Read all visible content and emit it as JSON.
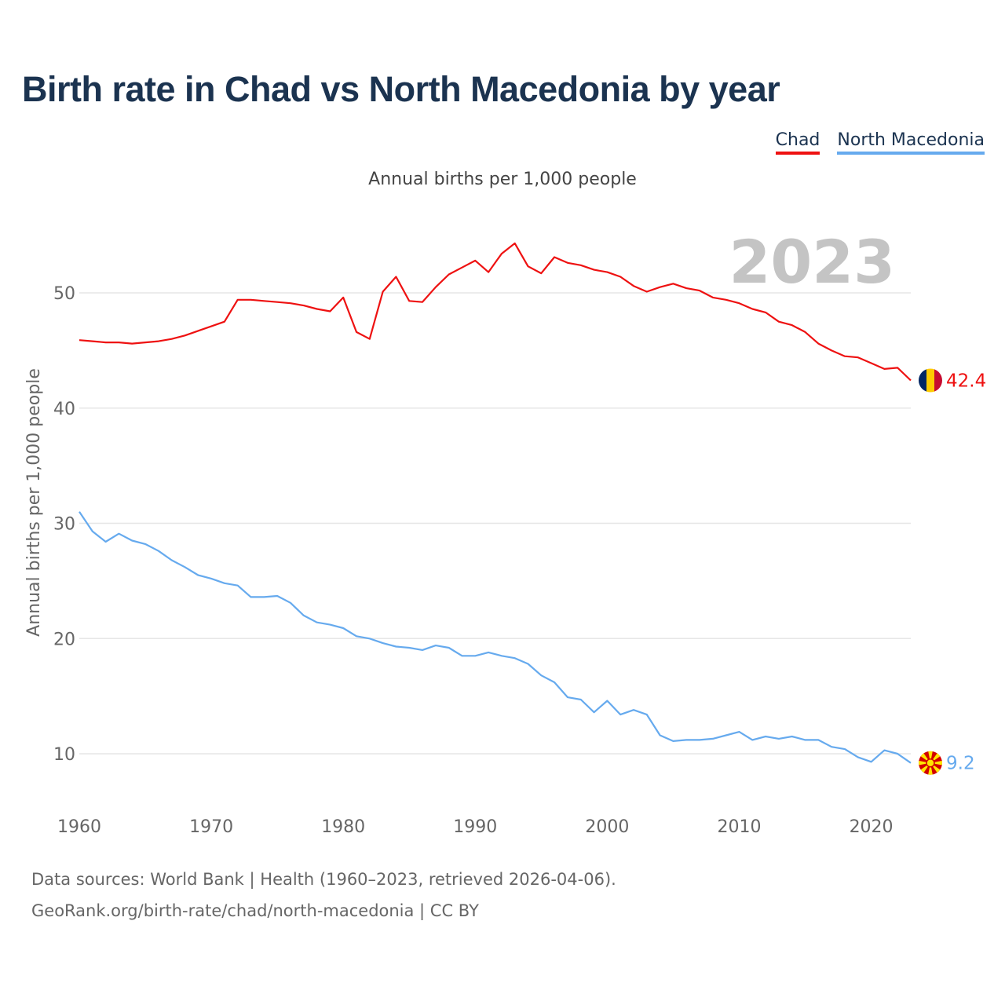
{
  "title": "Birth rate in Chad vs North Macedonia by year",
  "subtitle": "Annual births per 1,000 people",
  "footer": {
    "line1": "Data sources: World Bank | Health (1960–2023, retrieved 2026-04-06).",
    "line2": "GeoRank.org/birth-rate/chad/north-macedonia | CC BY"
  },
  "colors": {
    "chad": "#ee1111",
    "north_macedonia": "#66aaee",
    "grid": "#e6e6e6",
    "axis_text": "#666666",
    "year_watermark": "#c4c4c4"
  },
  "chart_data": {
    "type": "line",
    "title": "Birth rate in Chad vs North Macedonia by year",
    "ylabel": "Annual births per 1,000 people",
    "xlabel": "",
    "year_watermark": "2023",
    "xlim": [
      1960,
      2023
    ],
    "ylim": [
      5,
      57
    ],
    "x_ticks": [
      1960,
      1970,
      1980,
      1990,
      2000,
      2010,
      2020
    ],
    "y_ticks": [
      10,
      20,
      30,
      40,
      50
    ],
    "grid": true,
    "legend": "top-right",
    "x": [
      1960,
      1961,
      1962,
      1963,
      1964,
      1965,
      1966,
      1967,
      1968,
      1969,
      1970,
      1971,
      1972,
      1973,
      1974,
      1975,
      1976,
      1977,
      1978,
      1979,
      1980,
      1981,
      1982,
      1983,
      1984,
      1985,
      1986,
      1987,
      1988,
      1989,
      1990,
      1991,
      1992,
      1993,
      1994,
      1995,
      1996,
      1997,
      1998,
      1999,
      2000,
      2001,
      2002,
      2003,
      2004,
      2005,
      2006,
      2007,
      2008,
      2009,
      2010,
      2011,
      2012,
      2013,
      2014,
      2015,
      2016,
      2017,
      2018,
      2019,
      2020,
      2021,
      2022,
      2023
    ],
    "series": [
      {
        "name": "Chad",
        "end_label": "42.4",
        "values": [
          45.9,
          45.8,
          45.7,
          45.7,
          45.6,
          45.7,
          45.8,
          46.0,
          46.3,
          46.7,
          47.1,
          47.5,
          49.4,
          49.4,
          49.3,
          49.2,
          49.1,
          48.9,
          48.6,
          48.4,
          49.6,
          46.6,
          46.0,
          50.1,
          51.4,
          49.3,
          49.2,
          50.5,
          51.6,
          52.2,
          52.8,
          51.8,
          53.4,
          54.3,
          52.3,
          51.7,
          53.1,
          52.6,
          52.4,
          52.0,
          51.8,
          51.4,
          50.6,
          50.1,
          50.5,
          50.8,
          50.4,
          50.2,
          49.6,
          49.4,
          49.1,
          48.6,
          48.3,
          47.5,
          47.2,
          46.6,
          45.6,
          45.0,
          44.5,
          44.4,
          43.9,
          43.4,
          43.5,
          42.4
        ]
      },
      {
        "name": "North Macedonia",
        "end_label": "9.2",
        "values": [
          31.0,
          29.3,
          28.4,
          29.1,
          28.5,
          28.2,
          27.6,
          26.8,
          26.2,
          25.5,
          25.2,
          24.8,
          24.6,
          23.6,
          23.6,
          23.7,
          23.1,
          22.0,
          21.4,
          21.2,
          20.9,
          20.2,
          20.0,
          19.6,
          19.3,
          19.2,
          19.0,
          19.4,
          19.2,
          18.5,
          18.5,
          18.8,
          18.5,
          18.3,
          17.8,
          16.8,
          16.2,
          14.9,
          14.7,
          13.6,
          14.6,
          13.4,
          13.8,
          13.4,
          11.6,
          11.1,
          11.2,
          11.2,
          11.3,
          11.6,
          11.9,
          11.2,
          11.5,
          11.3,
          11.5,
          11.2,
          11.2,
          10.6,
          10.4,
          9.7,
          9.3,
          10.3,
          10.0,
          9.2
        ]
      }
    ]
  }
}
